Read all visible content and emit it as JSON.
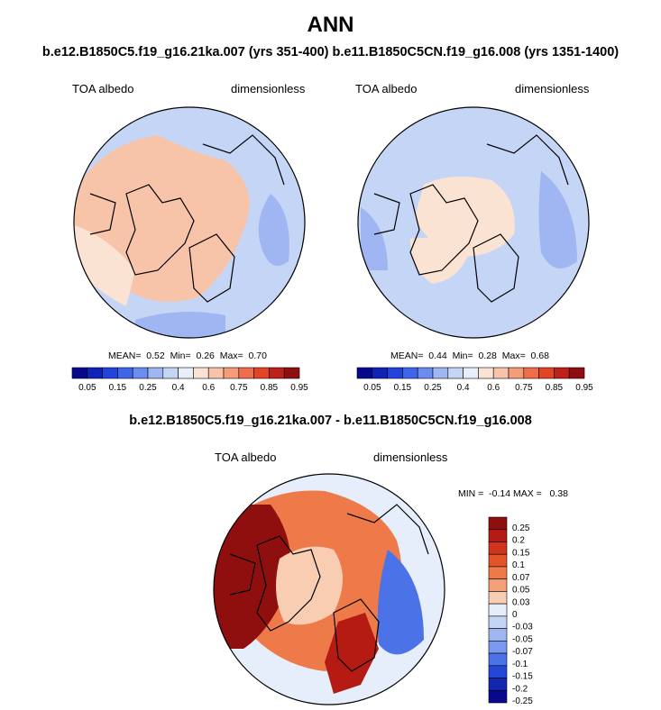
{
  "header": {
    "title": "ANN",
    "subtitle": "b.e12.B1850C5.f19_g16.21ka.007 (yrs 351-400) b.e11.B1850C5CN.f19_g16.008 (yrs 1351-1400)"
  },
  "chart_data": [
    {
      "type": "heatmap",
      "projection": "north-polar-stereographic",
      "variable": "TOA albedo",
      "units": "dimensionless",
      "stats": {
        "mean": "0.52",
        "min": "0.26",
        "max": "0.70"
      },
      "stats_text": "MEAN=  0.52  Min=  0.26  Max=  0.70",
      "colorbar_ticks": [
        "0.05",
        "0.15",
        "0.25",
        "0.4",
        "0.6",
        "0.75",
        "0.85",
        "0.95"
      ]
    },
    {
      "type": "heatmap",
      "projection": "north-polar-stereographic",
      "variable": "TOA albedo",
      "units": "dimensionless",
      "stats": {
        "mean": "0.44",
        "min": "0.28",
        "max": "0.68"
      },
      "stats_text": "MEAN=  0.44  Min=  0.28  Max=  0.68",
      "colorbar_ticks": [
        "0.05",
        "0.15",
        "0.25",
        "0.4",
        "0.6",
        "0.75",
        "0.85",
        "0.95"
      ]
    },
    {
      "type": "heatmap",
      "projection": "north-polar-stereographic",
      "title": "b.e12.B1850C5.f19_g16.21ka.007 - b.e11.B1850C5CN.f19_g16.008",
      "variable": "TOA albedo",
      "units": "dimensionless",
      "stats": {
        "min": "-0.14",
        "max": "0.38"
      },
      "stats_text": "MIN =  -0.14 MAX =   0.38",
      "colorbar_ticks": [
        "0.25",
        "0.2",
        "0.15",
        "0.1",
        "0.07",
        "0.05",
        "0.03",
        "0",
        "-0.03",
        "-0.05",
        "-0.07",
        "-0.1",
        "-0.15",
        "-0.2",
        "-0.25"
      ]
    }
  ],
  "colors": {
    "abs_scale": [
      "#08088f",
      "#1022b8",
      "#2244dd",
      "#3f66ea",
      "#6b8def",
      "#9fb6f3",
      "#c5d5f6",
      "#e8effa",
      "#fbe3d4",
      "#f7c4a9",
      "#f49d78",
      "#ef6d4a",
      "#e14426",
      "#c0201a",
      "#8f0f0f"
    ],
    "diff_scale": [
      "#8f0f0f",
      "#b51b12",
      "#d0341c",
      "#e35528",
      "#ef7a49",
      "#f3a078",
      "#f8cdb2",
      "#e6eefb",
      "#c4d4f5",
      "#9fb6f1",
      "#7b99ee",
      "#4b72e6",
      "#2348d8",
      "#1226b0",
      "#08088f"
    ]
  }
}
